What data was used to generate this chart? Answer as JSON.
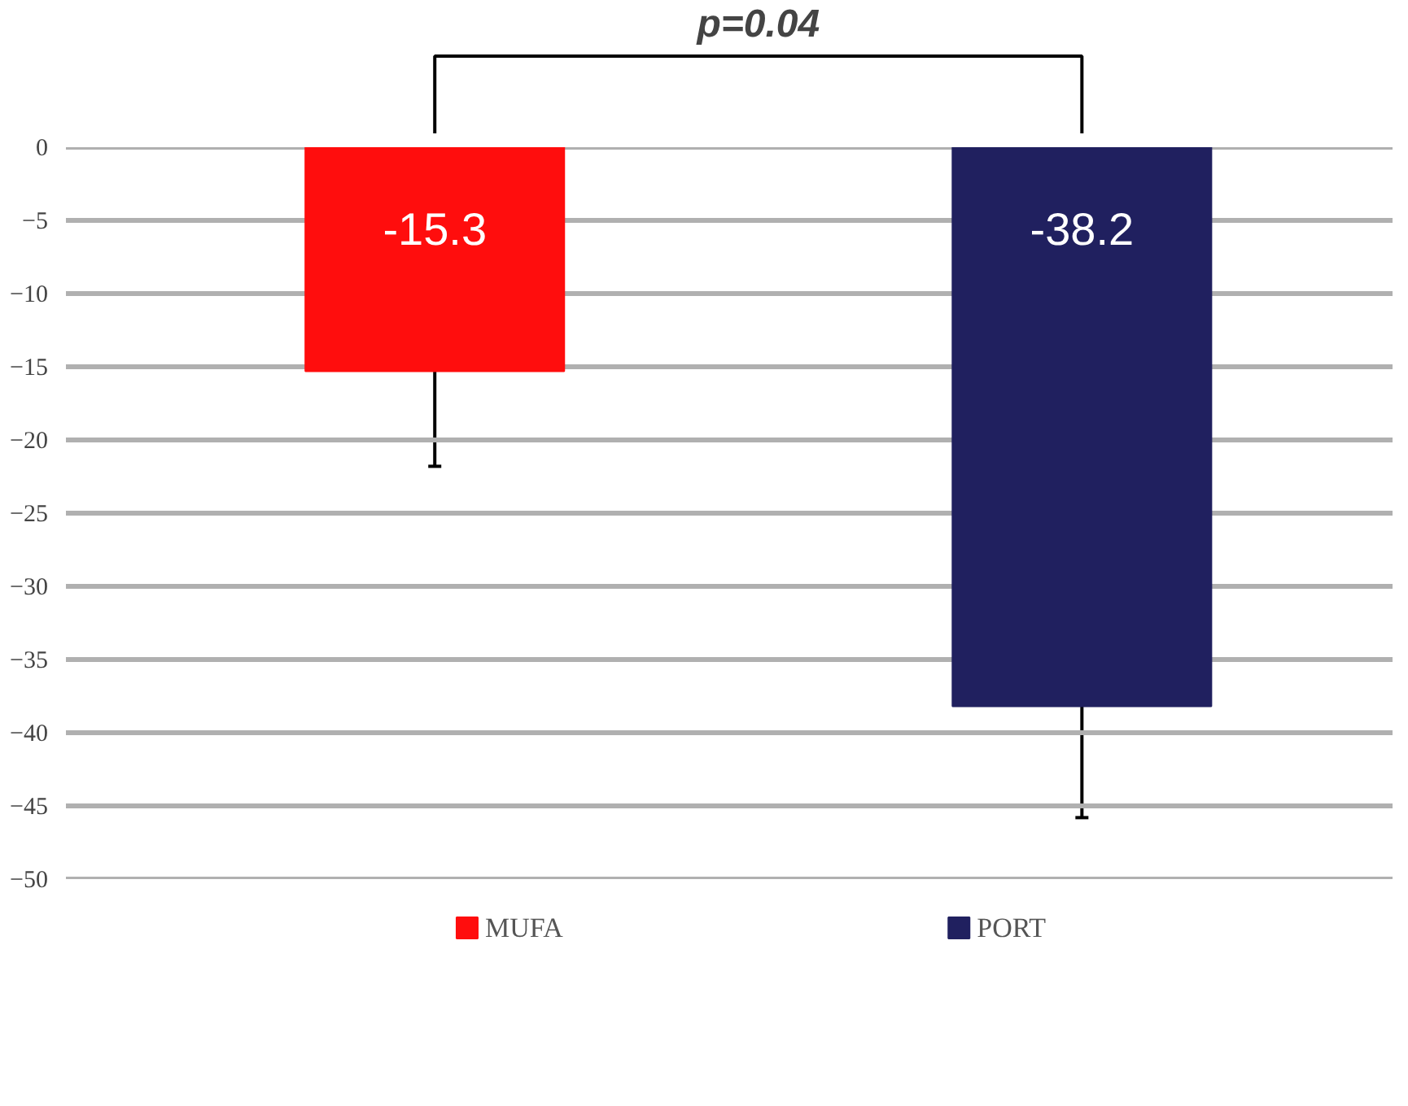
{
  "chart_data": {
    "type": "bar",
    "categories": [
      null,
      null
    ],
    "series": [
      {
        "name": "MUFA",
        "color": "#ff0d0d",
        "values": [
          -15.3,
          null
        ],
        "errors": [
          6.5,
          null
        ]
      },
      {
        "name": "PORT",
        "color": "#20205f",
        "values": [
          null,
          -38.2
        ],
        "errors": [
          null,
          7.6
        ]
      }
    ],
    "ylim": [
      -50,
      0
    ],
    "yticks": [
      -50,
      -45,
      -40,
      -35,
      -30,
      -25,
      -20,
      -15,
      -10,
      -5,
      0
    ],
    "grid": "y",
    "legend": "bottom",
    "data_labels": true,
    "tick_labels": "y",
    "annotations": [
      "p=0.04"
    ]
  }
}
